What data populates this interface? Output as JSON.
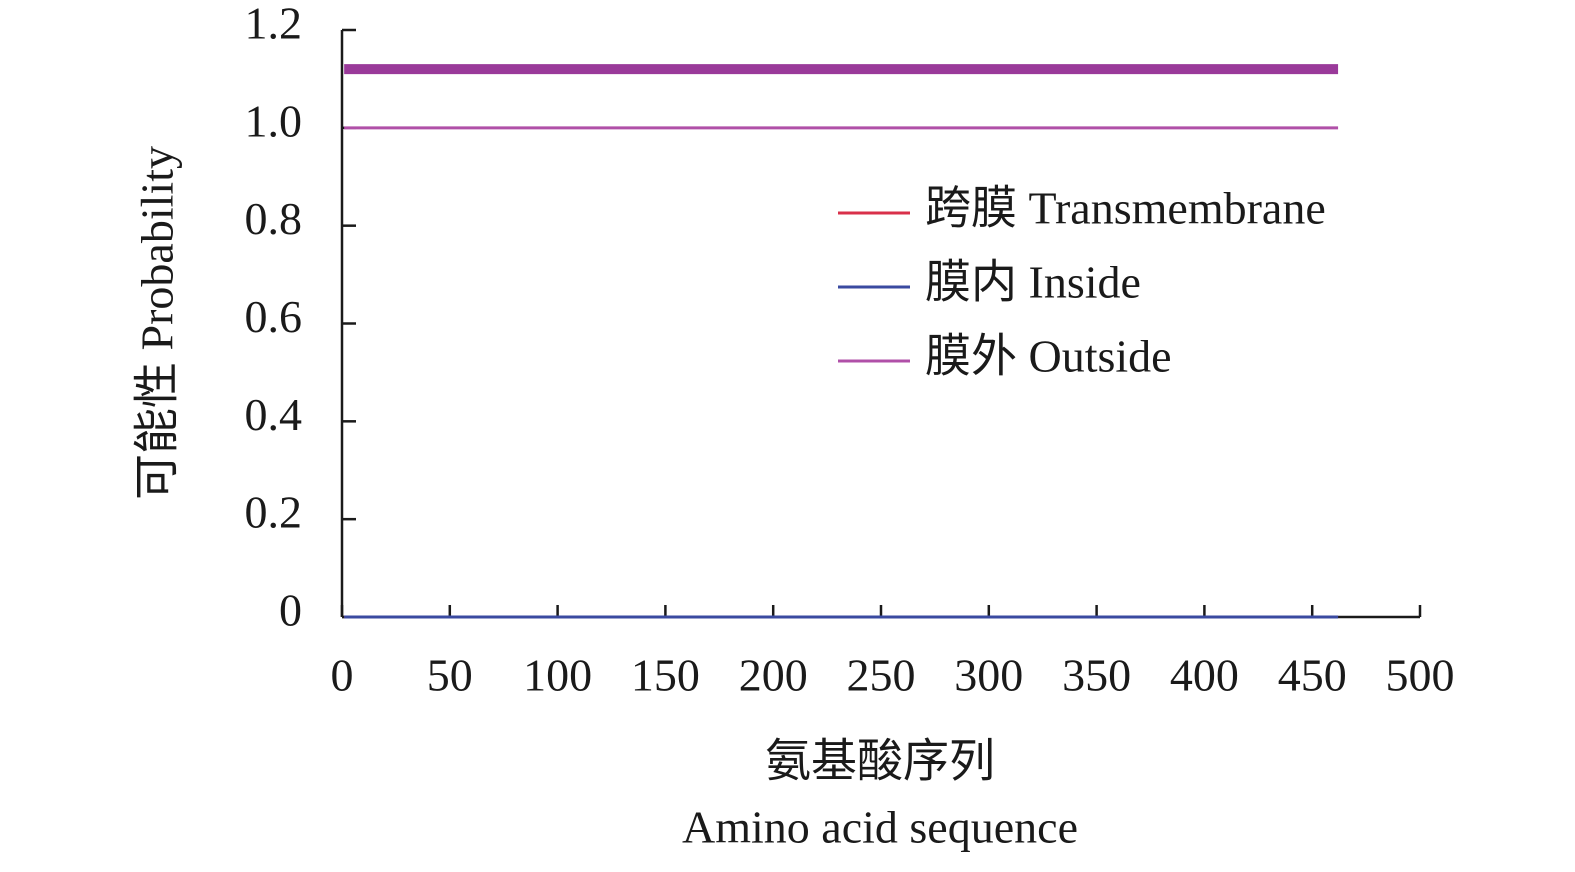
{
  "chart_data": {
    "type": "line",
    "ylabel": "可能性 Probability",
    "xlabel": "氨基酸序列",
    "xlabel_en": "Amino acid sequence",
    "xlim": [
      0,
      500
    ],
    "xticks": [
      0,
      50,
      100,
      150,
      200,
      250,
      300,
      350,
      400,
      450,
      500
    ],
    "ylim": [
      0,
      1.2
    ],
    "yticks": [
      0,
      0.2,
      0.4,
      0.6,
      0.8,
      {
        "value": 1,
        "label": "1.0"
      },
      1.2
    ],
    "legend": "right",
    "series": [
      {
        "name": "跨膜 Transmembrane",
        "color": "#d9304a",
        "x": [
          1,
          462
        ],
        "values": [
          0,
          0
        ]
      },
      {
        "name": "膜内 Inside",
        "color": "#3a4aa0",
        "x": [
          1,
          462
        ],
        "values": [
          0,
          0
        ]
      },
      {
        "name": "膜外 Outside",
        "color": "#b050a8",
        "x": [
          1,
          462
        ],
        "values": [
          1,
          1
        ]
      }
    ],
    "topology_bar": {
      "color": "#9a3a9a",
      "x": [
        1,
        462
      ],
      "values": [
        1.12,
        1.12
      ]
    }
  }
}
